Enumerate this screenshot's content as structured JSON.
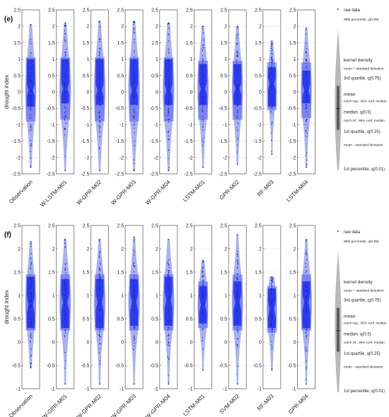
{
  "chart_data": [
    {
      "type": "violin",
      "panel_label": "(e)",
      "ylabel": "drought index",
      "ylim": [
        -2.5,
        2.5
      ],
      "yticks": [
        -2.5,
        -2,
        -1.5,
        -1,
        -0.5,
        0,
        0.5,
        1,
        1.5,
        2,
        2.5
      ],
      "grid": true,
      "categories": [
        "Observation",
        "W-LSTM-M01",
        "W-GPR-M02",
        "W-GPR-M03",
        "W-GPR-M04",
        "LSTM-M01",
        "GPR-M02",
        "RF-M03",
        "LSTM-M04"
      ],
      "series": [
        {
          "p1": -2.3,
          "q1": -0.45,
          "median": 0.05,
          "q3": 1.0,
          "p99": 2.05,
          "mean": 0.05,
          "sd_low": -0.9,
          "sd_high": 1.05,
          "width": 0.62
        },
        {
          "p1": -2.4,
          "q1": -0.35,
          "median": 0.1,
          "q3": 1.0,
          "p99": 2.1,
          "mean": 0.1,
          "sd_low": -0.85,
          "sd_high": 1.05,
          "width": 0.66
        },
        {
          "p1": -2.4,
          "q1": -0.4,
          "median": 0.05,
          "q3": 1.0,
          "p99": 2.15,
          "mean": 0.05,
          "sd_low": -0.9,
          "sd_high": 1.05,
          "width": 0.66
        },
        {
          "p1": -2.4,
          "q1": -0.4,
          "median": 0.05,
          "q3": 1.0,
          "p99": 2.15,
          "mean": 0.05,
          "sd_low": -0.9,
          "sd_high": 1.05,
          "width": 0.66
        },
        {
          "p1": -2.4,
          "q1": -0.4,
          "median": 0.05,
          "q3": 1.0,
          "p99": 2.1,
          "mean": 0.05,
          "sd_low": -0.9,
          "sd_high": 1.05,
          "width": 0.66
        },
        {
          "p1": -2.3,
          "q1": -0.4,
          "median": 0.1,
          "q3": 0.85,
          "p99": 2.0,
          "mean": 0.1,
          "sd_low": -0.85,
          "sd_high": 0.95,
          "width": 0.64
        },
        {
          "p1": -2.2,
          "q1": -0.4,
          "median": 0.1,
          "q3": 0.85,
          "p99": 2.0,
          "mean": 0.1,
          "sd_low": -0.85,
          "sd_high": 0.95,
          "width": 0.62
        },
        {
          "p1": -1.9,
          "q1": -0.45,
          "median": 0.25,
          "q3": 0.75,
          "p99": 1.55,
          "mean": 0.2,
          "sd_low": -0.55,
          "sd_high": 0.9,
          "width": 0.5
        },
        {
          "p1": -2.3,
          "q1": -0.35,
          "median": 0.05,
          "q3": 0.65,
          "p99": 1.95,
          "mean": 0.05,
          "sd_low": -0.8,
          "sd_high": 0.9,
          "width": 0.62
        }
      ]
    },
    {
      "type": "violin",
      "panel_label": "(f)",
      "ylabel": "drought index",
      "ylim": [
        -1,
        2.5
      ],
      "yticks": [
        -1,
        -0.5,
        0,
        0.5,
        1,
        1.5,
        2,
        2.5
      ],
      "grid": true,
      "categories": [
        "Observation",
        "W-GPR-M01",
        "W-GPR-M02",
        "W-GPR-M03",
        "W-GPR-M04",
        "LSTM-M01",
        "SVM-M02",
        "RF-M03",
        "GPR-M04"
      ],
      "series": [
        {
          "p1": -0.55,
          "q1": 0.3,
          "median": 0.8,
          "q3": 1.4,
          "p99": 2.15,
          "mean": 0.85,
          "sd_low": 0.25,
          "sd_high": 1.45,
          "width": 0.62
        },
        {
          "p1": -0.9,
          "q1": 0.3,
          "median": 0.85,
          "q3": 1.35,
          "p99": 2.2,
          "mean": 0.85,
          "sd_low": 0.25,
          "sd_high": 1.45,
          "width": 0.66
        },
        {
          "p1": -0.9,
          "q1": 0.3,
          "median": 0.85,
          "q3": 1.35,
          "p99": 2.2,
          "mean": 0.85,
          "sd_low": 0.25,
          "sd_high": 1.45,
          "width": 0.66
        },
        {
          "p1": -0.9,
          "q1": 0.35,
          "median": 0.85,
          "q3": 1.35,
          "p99": 2.25,
          "mean": 0.85,
          "sd_low": 0.25,
          "sd_high": 1.45,
          "width": 0.66
        },
        {
          "p1": -0.9,
          "q1": 0.35,
          "median": 0.9,
          "q3": 1.4,
          "p99": 2.2,
          "mean": 0.85,
          "sd_low": 0.25,
          "sd_high": 1.45,
          "width": 0.66
        },
        {
          "p1": -0.6,
          "q1": 0.4,
          "median": 0.8,
          "q3": 1.2,
          "p99": 1.75,
          "mean": 0.8,
          "sd_low": 0.3,
          "sd_high": 1.3,
          "width": 0.6
        },
        {
          "p1": -0.9,
          "q1": 0.35,
          "median": 0.85,
          "q3": 1.3,
          "p99": 2.3,
          "mean": 0.85,
          "sd_low": 0.25,
          "sd_high": 1.45,
          "width": 0.64
        },
        {
          "p1": -0.6,
          "q1": 0.3,
          "median": 0.7,
          "q3": 1.15,
          "p99": 1.4,
          "mean": 0.7,
          "sd_low": 0.2,
          "sd_high": 1.2,
          "width": 0.56
        },
        {
          "p1": -0.9,
          "q1": 0.3,
          "median": 0.85,
          "q3": 1.3,
          "p99": 2.2,
          "mean": 0.85,
          "sd_low": 0.25,
          "sd_high": 1.45,
          "width": 0.64
        }
      ]
    }
  ],
  "legend": {
    "raw_data": "raw data",
    "p99": "99th percentile, q(0.99)",
    "kernel_density": "kernel density",
    "mean_plus_sd": "mean + standard deviation",
    "q3": "3rd quartile, q(0.75)",
    "notch_sup": "notch sup., 95% conf. median",
    "mean": "mean",
    "median": "median, q(0.5)",
    "notch_inf": "notch inf., 95% conf. median",
    "q1": "1st quartile, q(0.25)",
    "mean_minus_sd": "mean - standard deviation",
    "p1": "1st percentile, q(0.01)"
  },
  "colors": {
    "violin_fill": "#9aa2ee",
    "box_fill": "#2b3bf0",
    "raw_dots": "#1525cc",
    "legend_gray": "#8a8a8a",
    "legend_dark": "#444444"
  }
}
